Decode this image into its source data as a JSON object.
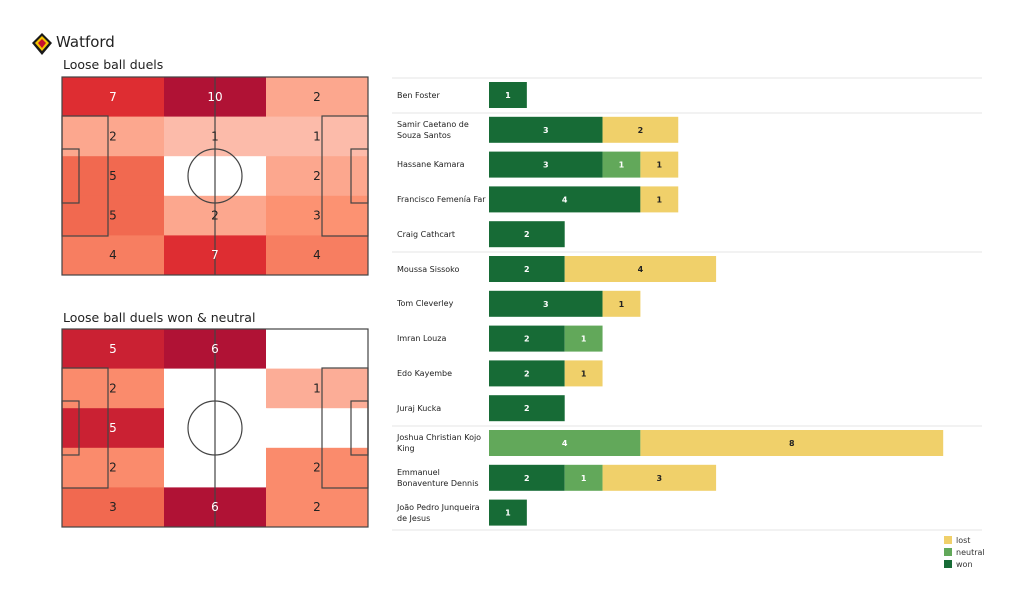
{
  "team": "Watford",
  "colors": {
    "won": "#176b36",
    "neutral": "#62a85a",
    "lost": "#f0d06a",
    "heat_max": "#b01235"
  },
  "chart_data": [
    {
      "type": "heatmap",
      "title": "Loose ball duels",
      "grid": [
        [
          7,
          10,
          2
        ],
        [
          2,
          1,
          1
        ],
        [
          5,
          0,
          2
        ],
        [
          5,
          2,
          3
        ],
        [
          4,
          7,
          4
        ]
      ],
      "labels": [
        [
          "7",
          "10",
          "2"
        ],
        [
          "2",
          "1",
          "1"
        ],
        [
          "5",
          "",
          "2"
        ],
        [
          "5",
          "2",
          "3"
        ],
        [
          "4",
          "7",
          "4"
        ]
      ]
    },
    {
      "type": "heatmap",
      "title": "Loose ball duels won & neutral",
      "grid": [
        [
          5,
          6,
          0
        ],
        [
          2,
          0,
          1
        ],
        [
          5,
          0,
          0
        ],
        [
          2,
          0,
          2
        ],
        [
          3,
          6,
          2
        ]
      ],
      "labels": [
        [
          "5",
          "6",
          ""
        ],
        [
          "2",
          "",
          "1"
        ],
        [
          "5",
          "",
          ""
        ],
        [
          "2",
          "",
          "2"
        ],
        [
          "3",
          "6",
          "2"
        ]
      ]
    },
    {
      "type": "bar",
      "stacked": true,
      "orientation": "horizontal",
      "legend": [
        "lost",
        "neutral",
        "won"
      ],
      "legend_position": "bottom-right",
      "players": [
        {
          "name": "Ben Foster",
          "won": 1,
          "neutral": 0,
          "lost": 0
        },
        {
          "name": "Samir Caetano de Souza Santos",
          "won": 3,
          "neutral": 0,
          "lost": 2
        },
        {
          "name": "Hassane Kamara",
          "won": 3,
          "neutral": 1,
          "lost": 1
        },
        {
          "name": "Francisco Femenía Far",
          "won": 4,
          "neutral": 0,
          "lost": 1
        },
        {
          "name": "Craig Cathcart",
          "won": 2,
          "neutral": 0,
          "lost": 0
        },
        {
          "name": "Moussa Sissoko",
          "won": 2,
          "neutral": 0,
          "lost": 4
        },
        {
          "name": "Tom Cleverley",
          "won": 3,
          "neutral": 0,
          "lost": 1
        },
        {
          "name": "Imran Louza",
          "won": 2,
          "neutral": 1,
          "lost": 0
        },
        {
          "name": "Edo Kayembe",
          "won": 2,
          "neutral": 0,
          "lost": 1
        },
        {
          "name": "Juraj Kucka",
          "won": 2,
          "neutral": 0,
          "lost": 0
        },
        {
          "name": "Joshua Christian Kojo King",
          "won": 0,
          "neutral": 4,
          "lost": 8
        },
        {
          "name": "Emmanuel Bonaventure Dennis",
          "won": 2,
          "neutral": 1,
          "lost": 3
        },
        {
          "name": "João Pedro Junqueira de Jesus",
          "won": 1,
          "neutral": 0,
          "lost": 0
        }
      ]
    }
  ]
}
